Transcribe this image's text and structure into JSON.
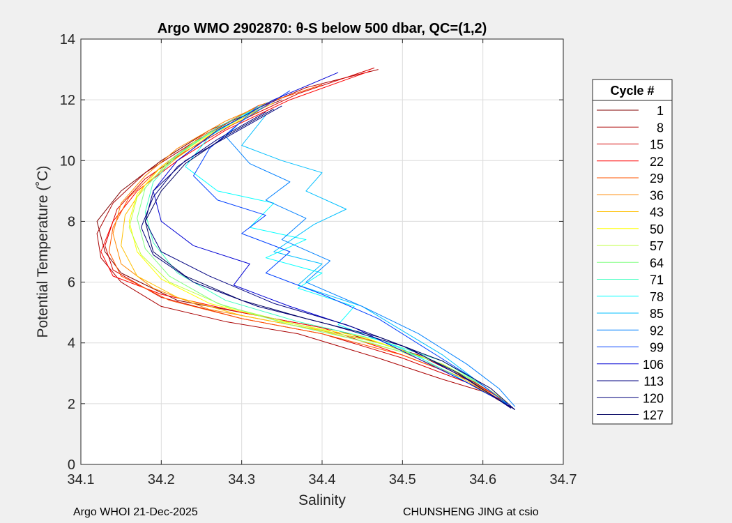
{
  "chart_data": {
    "type": "line",
    "title": "Argo WMO 2902870: θ-S below 500 dbar,  QC=(1,2)",
    "xlabel": "Salinity",
    "ylabel": "Potential Temperature (˚C)",
    "xlim": [
      34.1,
      34.7
    ],
    "ylim": [
      0,
      14
    ],
    "xticks": [
      34.1,
      34.2,
      34.3,
      34.4,
      34.5,
      34.6,
      34.7
    ],
    "xtick_labels": [
      "34.1",
      "34.2",
      "34.3",
      "34.4",
      "34.5",
      "34.6",
      "34.7"
    ],
    "yticks": [
      0,
      2,
      4,
      6,
      8,
      10,
      12,
      14
    ],
    "ytick_labels": [
      "0",
      "2",
      "4",
      "6",
      "8",
      "10",
      "12",
      "14"
    ],
    "grid": true,
    "legend": {
      "title": "Cycle #",
      "placement": "right-outside",
      "entries": [
        "1",
        "8",
        "15",
        "22",
        "29",
        "36",
        "43",
        "50",
        "57",
        "64",
        "71",
        "78",
        "85",
        "92",
        "99",
        "106",
        "113",
        "120",
        "127"
      ],
      "colors": [
        "#800000",
        "#aa0000",
        "#d40000",
        "#ff0000",
        "#ff5500",
        "#ff8800",
        "#ffbf00",
        "#ffff00",
        "#bfff40",
        "#80ff80",
        "#40ffbf",
        "#00ffff",
        "#00bfff",
        "#0080ff",
        "#0040ff",
        "#0000d4",
        "#000080",
        "#00007a",
        "#000060"
      ]
    },
    "series": [
      {
        "name": "1",
        "color": "#800000",
        "salinity": [
          34.35,
          34.26,
          34.2,
          34.15,
          34.12,
          34.13,
          34.15,
          34.22,
          34.32,
          34.42,
          34.52,
          34.59,
          34.62,
          34.635
        ],
        "theta": [
          12.0,
          11.0,
          10.0,
          9.0,
          8.0,
          7.0,
          6.3,
          5.4,
          4.9,
          4.4,
          3.6,
          2.7,
          2.2,
          1.85
        ]
      },
      {
        "name": "8",
        "color": "#aa0000",
        "salinity": [
          34.47,
          34.38,
          34.3,
          34.24,
          34.18,
          34.14,
          34.12,
          34.125,
          34.15,
          34.2,
          34.28,
          34.37,
          34.47,
          34.55,
          34.6,
          34.63
        ],
        "theta": [
          13.0,
          12.4,
          11.5,
          10.6,
          9.6,
          8.6,
          7.6,
          6.8,
          6.0,
          5.2,
          4.7,
          4.3,
          3.5,
          2.8,
          2.4,
          2.0
        ]
      },
      {
        "name": "15",
        "color": "#d40000",
        "salinity": [
          34.465,
          34.37,
          34.29,
          34.23,
          34.18,
          34.145,
          34.13,
          34.14,
          34.2,
          34.3,
          34.4,
          34.5,
          34.58,
          34.625
        ],
        "theta": [
          13.05,
          12.2,
          11.2,
          10.3,
          9.4,
          8.4,
          7.2,
          6.4,
          5.5,
          4.8,
          4.3,
          3.5,
          2.7,
          2.1
        ]
      },
      {
        "name": "22",
        "color": "#ff0000",
        "salinity": [
          34.46,
          34.36,
          34.28,
          34.22,
          34.17,
          34.14,
          34.125,
          34.14,
          34.2,
          34.3,
          34.4,
          34.5,
          34.58,
          34.625
        ],
        "theta": [
          12.95,
          12.0,
          11.0,
          10.0,
          9.0,
          8.0,
          7.0,
          6.2,
          5.6,
          5.0,
          4.5,
          3.6,
          2.8,
          2.15
        ]
      },
      {
        "name": "29",
        "color": "#ff5500",
        "salinity": [
          34.4,
          34.32,
          34.25,
          34.2,
          34.16,
          34.14,
          34.135,
          34.15,
          34.21,
          34.3,
          34.4,
          34.5,
          34.58,
          34.62
        ],
        "theta": [
          12.5,
          11.8,
          10.8,
          9.8,
          8.8,
          7.8,
          7.0,
          6.2,
          5.4,
          4.8,
          4.3,
          3.6,
          2.8,
          2.1
        ]
      },
      {
        "name": "36",
        "color": "#ff8800",
        "salinity": [
          34.35,
          34.28,
          34.22,
          34.18,
          34.15,
          34.14,
          34.15,
          34.19,
          34.26,
          34.36,
          34.46,
          34.55,
          34.6,
          34.625
        ],
        "theta": [
          12.1,
          11.3,
          10.4,
          9.5,
          8.6,
          7.6,
          6.6,
          5.8,
          5.1,
          4.6,
          4.1,
          3.3,
          2.5,
          2.05
        ]
      },
      {
        "name": "43",
        "color": "#ffbf00",
        "salinity": [
          34.34,
          34.27,
          34.22,
          34.18,
          34.155,
          34.15,
          34.17,
          34.22,
          34.3,
          34.4,
          34.5,
          34.57,
          34.615
        ],
        "theta": [
          11.9,
          11.0,
          10.1,
          9.2,
          8.2,
          7.2,
          6.2,
          5.5,
          4.9,
          4.4,
          3.7,
          2.9,
          2.2
        ]
      },
      {
        "name": "50",
        "color": "#ffff00",
        "salinity": [
          34.32,
          34.25,
          34.2,
          34.17,
          34.16,
          34.17,
          34.2,
          34.26,
          34.35,
          34.45,
          34.54,
          34.6,
          34.63
        ],
        "theta": [
          11.6,
          10.7,
          9.8,
          8.9,
          8.0,
          7.0,
          6.1,
          5.3,
          4.7,
          4.2,
          3.4,
          2.6,
          2.05
        ]
      },
      {
        "name": "57",
        "color": "#bfff40",
        "salinity": [
          34.3,
          34.24,
          34.2,
          34.17,
          34.16,
          34.175,
          34.21,
          34.28,
          34.37,
          34.47,
          34.55,
          34.6,
          34.63
        ],
        "theta": [
          11.4,
          10.6,
          9.7,
          8.8,
          7.8,
          6.9,
          6.0,
          5.2,
          4.6,
          4.0,
          3.3,
          2.6,
          2.0
        ]
      },
      {
        "name": "64",
        "color": "#80ff80",
        "salinity": [
          34.33,
          34.26,
          34.21,
          34.18,
          34.17,
          34.18,
          34.21,
          34.27,
          34.36,
          34.46,
          34.54,
          34.6,
          34.63
        ],
        "theta": [
          11.8,
          10.9,
          10.0,
          9.1,
          8.1,
          7.1,
          6.2,
          5.3,
          4.6,
          4.0,
          3.4,
          2.6,
          2.0
        ]
      },
      {
        "name": "71",
        "color": "#40ffbf",
        "salinity": [
          34.34,
          34.27,
          34.22,
          34.19,
          34.18,
          34.19,
          34.22,
          34.28,
          34.37,
          34.47,
          34.55,
          34.6,
          34.63
        ],
        "theta": [
          12.0,
          11.1,
          10.2,
          9.3,
          8.3,
          7.3,
          6.3,
          5.4,
          4.7,
          4.1,
          3.4,
          2.6,
          2.0
        ]
      },
      {
        "name": "78",
        "color": "#00ffff",
        "salinity": [
          34.31,
          34.26,
          34.23,
          34.27,
          34.34,
          34.31,
          34.38,
          34.33,
          34.4,
          34.37,
          34.44,
          34.42,
          34.5,
          34.56,
          34.6,
          34.63
        ],
        "theta": [
          11.6,
          10.8,
          9.8,
          9.0,
          8.6,
          7.8,
          7.4,
          6.8,
          6.3,
          5.8,
          5.2,
          4.6,
          3.8,
          3.0,
          2.4,
          2.0
        ]
      },
      {
        "name": "85",
        "color": "#00bfff",
        "salinity": [
          34.33,
          34.3,
          34.35,
          34.4,
          34.38,
          34.43,
          34.39,
          34.34,
          34.4,
          34.37,
          34.45,
          34.5,
          34.55,
          34.6,
          34.63
        ],
        "theta": [
          11.5,
          10.5,
          10.0,
          9.6,
          9.0,
          8.4,
          7.9,
          7.0,
          6.6,
          5.9,
          5.2,
          4.4,
          3.6,
          2.6,
          2.0
        ]
      },
      {
        "name": "92",
        "color": "#0080ff",
        "salinity": [
          34.32,
          34.28,
          34.31,
          34.36,
          34.33,
          34.38,
          34.35,
          34.41,
          34.38,
          34.45,
          34.52,
          34.58,
          34.62,
          34.64
        ],
        "theta": [
          11.8,
          10.8,
          9.9,
          9.3,
          8.7,
          8.1,
          7.4,
          6.7,
          6.0,
          5.2,
          4.3,
          3.3,
          2.5,
          1.9
        ]
      },
      {
        "name": "99",
        "color": "#0040ff",
        "salinity": [
          34.36,
          34.3,
          34.26,
          34.24,
          34.27,
          34.33,
          34.3,
          34.36,
          34.33,
          34.4,
          34.47,
          34.53,
          34.59,
          34.63
        ],
        "theta": [
          12.3,
          11.3,
          10.4,
          9.5,
          8.7,
          8.2,
          7.6,
          7.0,
          6.3,
          5.6,
          4.8,
          3.8,
          2.8,
          2.0
        ]
      },
      {
        "name": "106",
        "color": "#0000d4",
        "salinity": [
          34.42,
          34.34,
          34.27,
          34.22,
          34.19,
          34.2,
          34.24,
          34.31,
          34.29,
          34.36,
          34.44,
          34.51,
          34.58,
          34.635
        ],
        "theta": [
          12.9,
          12.0,
          11.0,
          10.0,
          9.0,
          8.0,
          7.2,
          6.6,
          5.9,
          5.2,
          4.5,
          3.6,
          2.7,
          1.9
        ]
      },
      {
        "name": "113",
        "color": "#000080",
        "salinity": [
          34.35,
          34.29,
          34.23,
          34.19,
          34.18,
          34.2,
          34.26,
          34.34,
          34.43,
          34.51,
          34.58,
          34.64
        ],
        "theta": [
          11.8,
          10.9,
          10.0,
          9.0,
          8.0,
          7.0,
          6.2,
          5.3,
          4.6,
          3.8,
          2.8,
          1.8
        ]
      },
      {
        "name": "120",
        "color": "#00007a",
        "salinity": [
          34.33,
          34.27,
          34.22,
          34.19,
          34.175,
          34.19,
          34.24,
          34.32,
          34.41,
          34.5,
          34.57,
          34.635
        ],
        "theta": [
          11.6,
          10.7,
          9.8,
          8.8,
          7.8,
          6.9,
          6.0,
          5.2,
          4.6,
          3.9,
          3.0,
          1.85
        ]
      },
      {
        "name": "127",
        "color": "#000060",
        "salinity": [
          34.34,
          34.28,
          34.23,
          34.2,
          34.18,
          34.19,
          34.23,
          34.3,
          34.38,
          34.47,
          34.55,
          34.61,
          34.64
        ],
        "theta": [
          11.7,
          10.8,
          9.9,
          9.0,
          8.0,
          7.0,
          6.2,
          5.4,
          4.8,
          4.2,
          3.4,
          2.5,
          1.8
        ]
      }
    ]
  },
  "footer": {
    "left": "Argo WHOI 21-Dec-2025",
    "right": "CHUNSHENG JING at csio"
  }
}
